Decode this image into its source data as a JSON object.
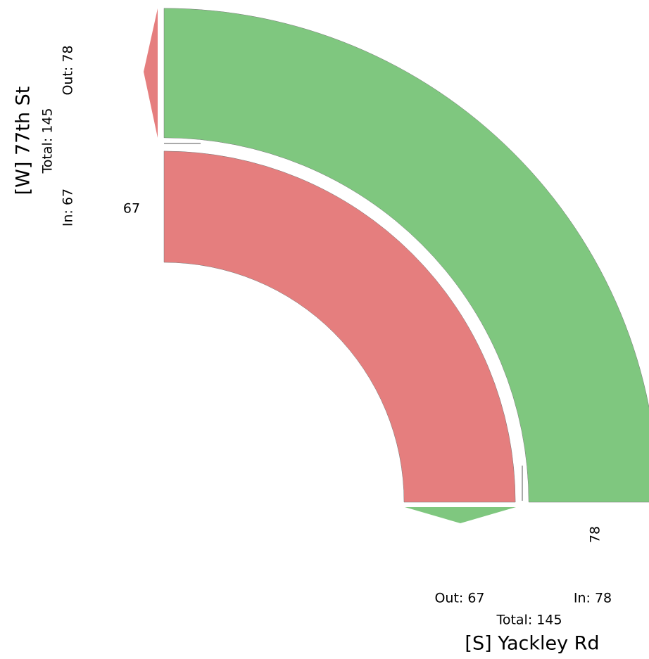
{
  "west": {
    "name": "[W] 77th St",
    "total": "Total: 145",
    "in": "In: 67",
    "out": "Out: 78"
  },
  "south": {
    "name": "[S] Yackley Rd",
    "total": "Total: 145",
    "in": "In: 78",
    "out": "Out: 67"
  },
  "flows": [
    {
      "value": 67,
      "color": "#e57e7e"
    },
    {
      "value": 78,
      "color": "#7fc77f"
    }
  ]
}
